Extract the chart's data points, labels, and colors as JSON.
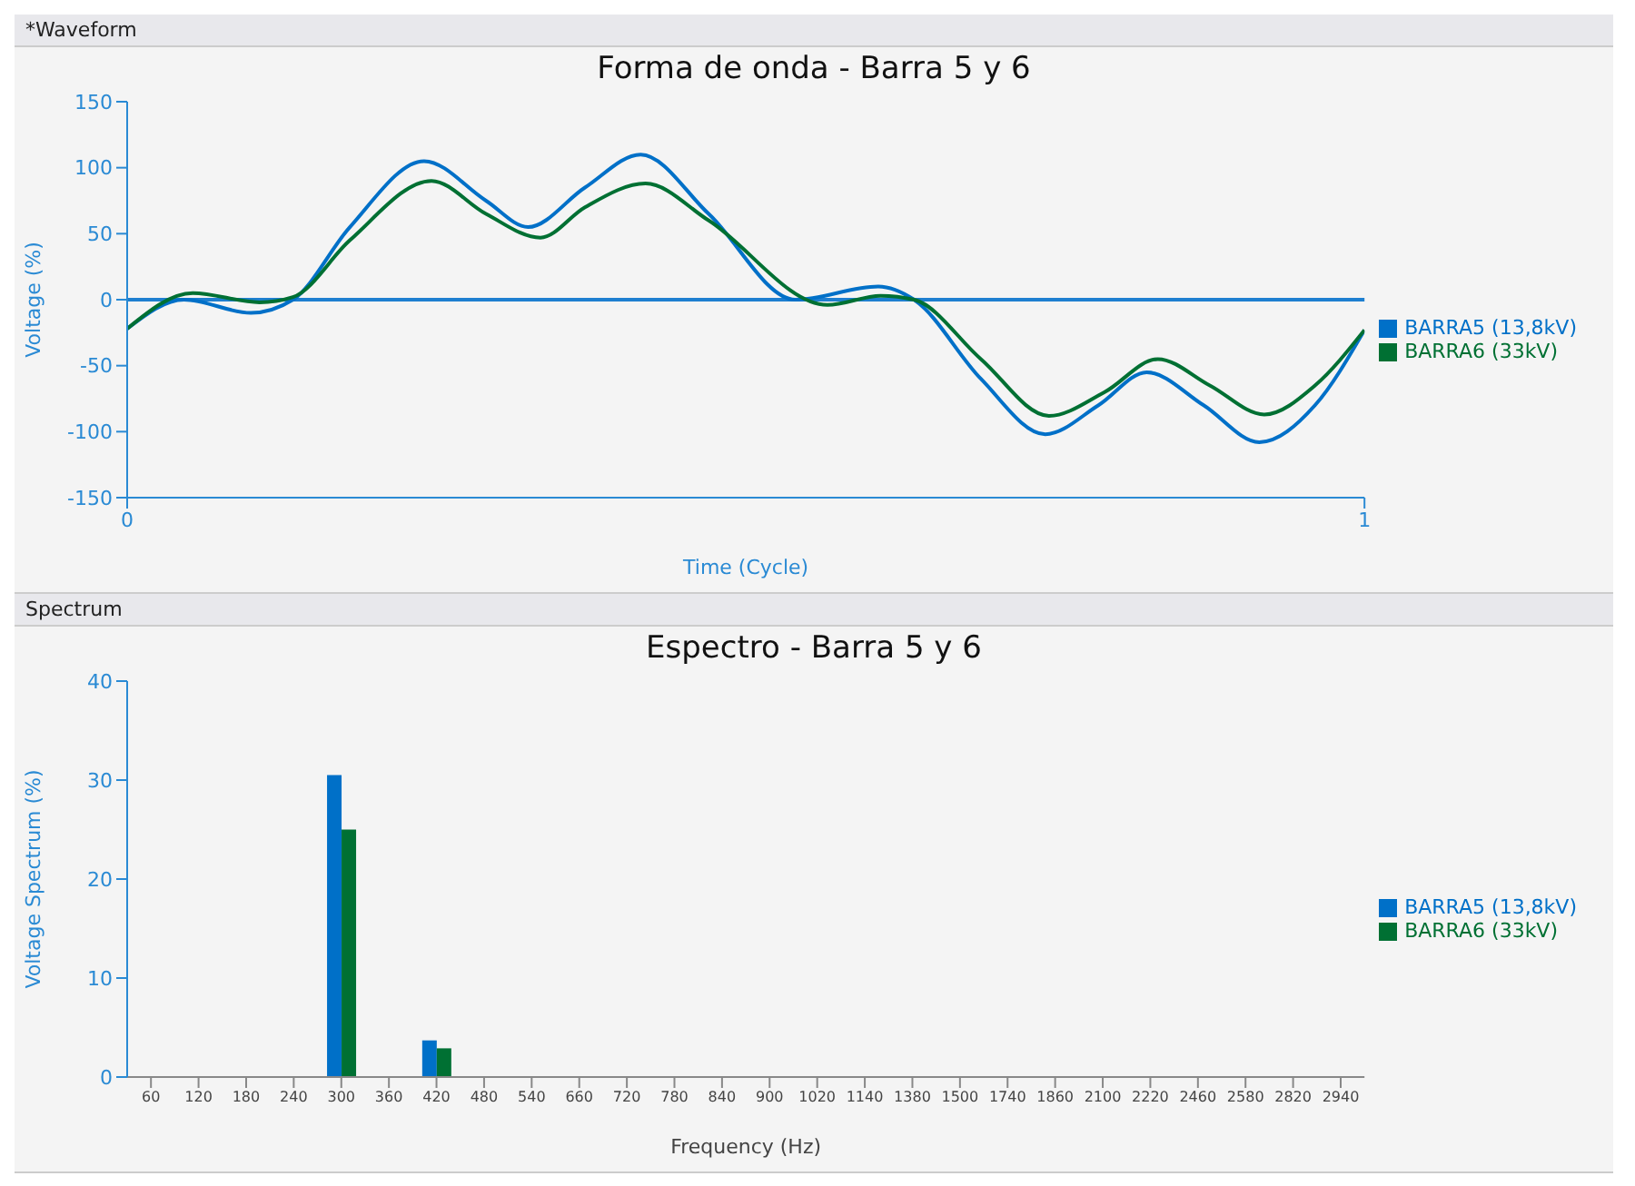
{
  "chart_data": [
    {
      "type": "line",
      "title": "Forma de onda - Barra 5 y 6",
      "xlabel": "Time (Cycle)",
      "ylabel": "Voltage (%)",
      "annotations": [
        "*Waveform"
      ],
      "xlim": [
        0,
        1
      ],
      "xticks": [
        0,
        1
      ],
      "ylim": [
        -150,
        150
      ],
      "yticks": [
        -150,
        -100,
        -50,
        0,
        50,
        100,
        150
      ],
      "grid": false,
      "legend": "right",
      "marker": "none",
      "line_style": "solid",
      "ref_lines": [
        {
          "axis": "y",
          "value": 0,
          "color": "#1e7fd0"
        }
      ],
      "series": [
        {
          "name": "BARRA5 (13,8kV)",
          "color": "#0070c8",
          "x": [
            0,
            0.046,
            0.1,
            0.134,
            0.18,
            0.24,
            0.29,
            0.324,
            0.37,
            0.415,
            0.47,
            0.54,
            0.607,
            0.636,
            0.69,
            0.742,
            0.785,
            0.824,
            0.87,
            0.915,
            0.96,
            1
          ],
          "values": [
            -22,
            0,
            -10,
            0,
            55,
            105,
            75,
            55,
            85,
            110,
            65,
            0,
            10,
            0,
            -60,
            -102,
            -80,
            -55,
            -80,
            -108,
            -80,
            -23
          ]
        },
        {
          "name": "BARRA6 (33kV)",
          "color": "#007033",
          "x": [
            0,
            0.053,
            0.107,
            0.134,
            0.18,
            0.246,
            0.29,
            0.334,
            0.37,
            0.419,
            0.47,
            0.566,
            0.609,
            0.636,
            0.69,
            0.745,
            0.79,
            0.833,
            0.875,
            0.919,
            0.96,
            1
          ],
          "values": [
            -22,
            5,
            -2,
            2,
            45,
            90,
            65,
            47,
            70,
            88,
            60,
            -4,
            3,
            0,
            -45,
            -88,
            -70,
            -45,
            -65,
            -87,
            -65,
            -23
          ]
        }
      ]
    },
    {
      "type": "bar",
      "title": "Espectro - Barra 5 y 6",
      "xlabel": "Frequency (Hz)",
      "ylabel": "Voltage Spectrum (%)",
      "annotations": [
        "Spectrum"
      ],
      "ylim": [
        0,
        40
      ],
      "yticks": [
        0,
        10,
        20,
        30,
        40
      ],
      "grid": false,
      "legend": "right",
      "categories": [
        "60",
        "120",
        "180",
        "240",
        "300",
        "360",
        "420",
        "480",
        "540",
        "660",
        "720",
        "780",
        "840",
        "900",
        "1020",
        "1140",
        "1380",
        "1500",
        "1740",
        "1860",
        "2100",
        "2220",
        "2460",
        "2580",
        "2820",
        "2940"
      ],
      "series": [
        {
          "name": "BARRA5 (13,8kV)",
          "color": "#0070c8",
          "values": [
            0,
            0,
            0,
            0,
            30.5,
            0,
            3.7,
            0,
            0,
            0,
            0,
            0,
            0,
            0,
            0,
            0,
            0,
            0,
            0,
            0,
            0,
            0,
            0,
            0,
            0,
            0
          ]
        },
        {
          "name": "BARRA6 (33kV)",
          "color": "#007033",
          "values": [
            0,
            0,
            0,
            0,
            25,
            0,
            2.9,
            0,
            0,
            0,
            0,
            0,
            0,
            0,
            0,
            0,
            0,
            0,
            0,
            0,
            0,
            0,
            0,
            0,
            0,
            0
          ]
        }
      ]
    }
  ]
}
